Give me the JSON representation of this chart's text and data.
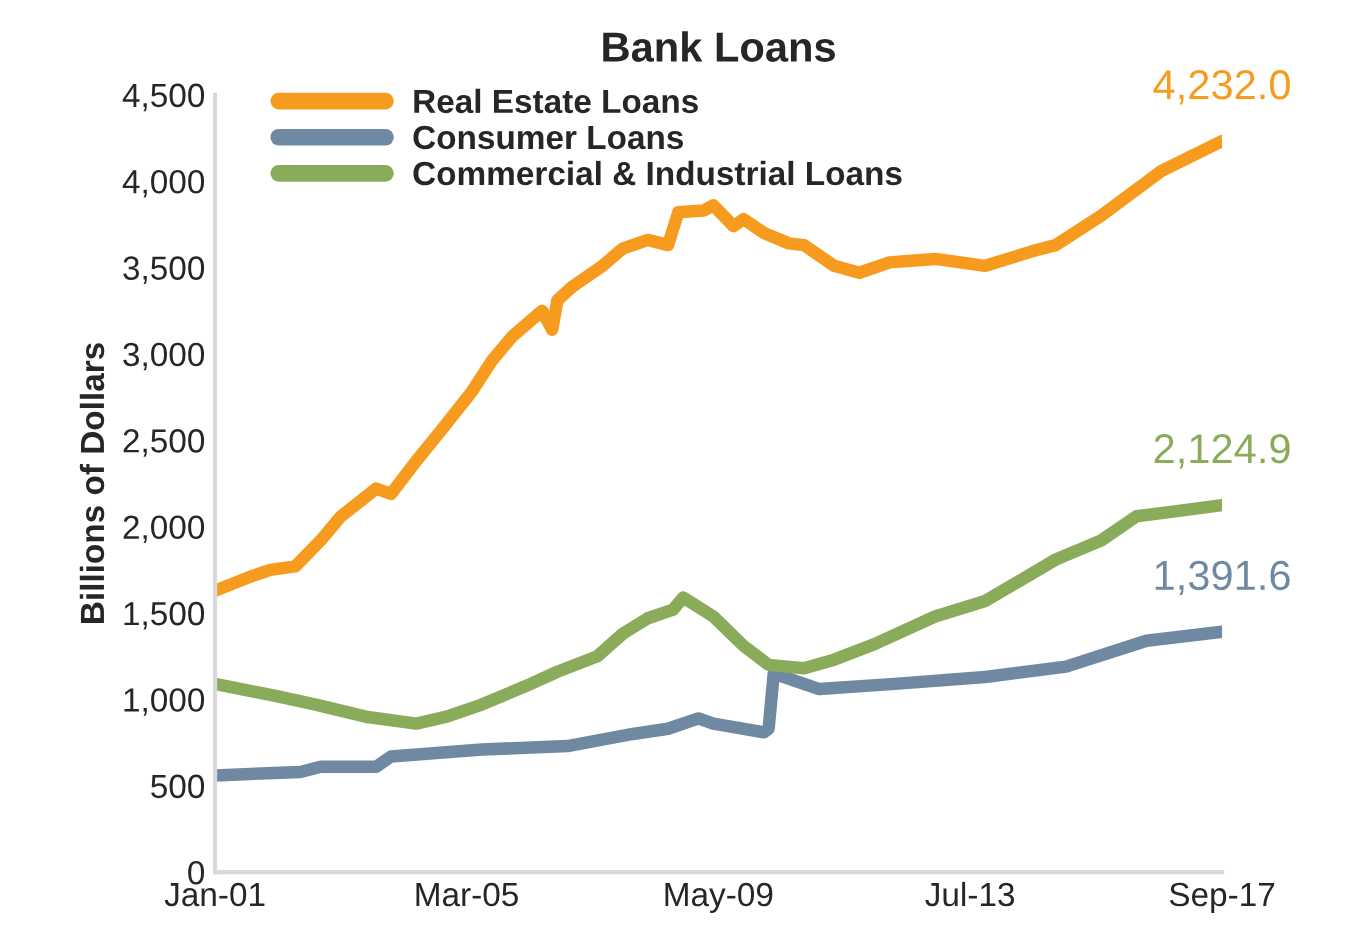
{
  "chart_data": {
    "type": "line",
    "title": "Bank Loans",
    "ylabel": "Billions of Dollars",
    "xlim": [
      "2001-01",
      "2017-09"
    ],
    "xticks": [
      {
        "value": "2001-01",
        "label": "Jan-01"
      },
      {
        "value": "2005-03",
        "label": "Mar-05"
      },
      {
        "value": "2009-05",
        "label": "May-09"
      },
      {
        "value": "2013-07",
        "label": "Jul-13"
      },
      {
        "value": "2017-09",
        "label": "Sep-17"
      }
    ],
    "ylim": [
      0,
      4500
    ],
    "yticks": [
      {
        "value": 0,
        "label": "0"
      },
      {
        "value": 500,
        "label": "500"
      },
      {
        "value": 1000,
        "label": "1,000"
      },
      {
        "value": 1500,
        "label": "1,500"
      },
      {
        "value": 2000,
        "label": "2,000"
      },
      {
        "value": 2500,
        "label": "2,500"
      },
      {
        "value": 3000,
        "label": "3,000"
      },
      {
        "value": 3500,
        "label": "3,500"
      },
      {
        "value": 4000,
        "label": "4,000"
      },
      {
        "value": 4500,
        "label": "4,500"
      }
    ],
    "grid": false,
    "legend": "top left",
    "marker": "none",
    "line_style": "solid",
    "series": [
      {
        "name": "Real Estate Loans",
        "color": "#f79b1e",
        "x": [
          "2001-01",
          "2001-08",
          "2001-12",
          "2002-05",
          "2002-10",
          "2003-02",
          "2003-06",
          "2003-09",
          "2003-12",
          "2004-05",
          "2004-10",
          "2005-04",
          "2005-08",
          "2005-12",
          "2006-06",
          "2006-08",
          "2006-09",
          "2006-12",
          "2007-06",
          "2007-10",
          "2008-03",
          "2008-07",
          "2008-09",
          "2009-02",
          "2009-04",
          "2009-08",
          "2009-10",
          "2010-02",
          "2010-07",
          "2010-10",
          "2011-04",
          "2011-09",
          "2012-03",
          "2012-12",
          "2013-10",
          "2014-08",
          "2014-12",
          "2015-09",
          "2016-09",
          "2017-09"
        ],
        "values": [
          1630,
          1710,
          1750,
          1770,
          1920,
          2060,
          2150,
          2220,
          2190,
          2380,
          2560,
          2780,
          2960,
          3100,
          3250,
          3140,
          3310,
          3390,
          3510,
          3610,
          3660,
          3630,
          3820,
          3830,
          3860,
          3740,
          3780,
          3700,
          3640,
          3630,
          3510,
          3470,
          3530,
          3550,
          3510,
          3600,
          3630,
          3800,
          4060,
          4232.0
        ]
      },
      {
        "name": "Consumer Loans",
        "color": "#7089a3",
        "x": [
          "2001-01",
          "2002-06",
          "2002-10",
          "2003-09",
          "2003-12",
          "2005-06",
          "2006-11",
          "2007-12",
          "2008-07",
          "2009-01",
          "2009-04",
          "2010-02",
          "2010-03",
          "2010-04",
          "2011-01",
          "2012-04",
          "2013-10",
          "2015-02",
          "2016-06",
          "2017-09"
        ],
        "values": [
          560,
          580,
          610,
          610,
          670,
          710,
          730,
          800,
          830,
          890,
          860,
          810,
          830,
          1150,
          1060,
          1090,
          1130,
          1190,
          1340,
          1391.6
        ]
      },
      {
        "name": "Commercial & Industrial Loans",
        "color": "#8aac5a",
        "x": [
          "2001-01",
          "2002-01",
          "2002-09",
          "2003-07",
          "2004-05",
          "2004-11",
          "2005-06",
          "2006-03",
          "2006-09",
          "2007-05",
          "2007-10",
          "2008-03",
          "2008-08",
          "2008-10",
          "2009-04",
          "2009-10",
          "2010-03",
          "2010-10",
          "2011-04",
          "2011-12",
          "2012-12",
          "2013-10",
          "2014-12",
          "2015-09",
          "2016-04",
          "2016-12",
          "2017-09"
        ],
        "values": [
          1090,
          1020,
          970,
          900,
          860,
          900,
          970,
          1080,
          1160,
          1250,
          1380,
          1470,
          1520,
          1590,
          1480,
          1310,
          1200,
          1180,
          1230,
          1320,
          1480,
          1570,
          1810,
          1920,
          2060,
          2090,
          2124.9
        ]
      }
    ],
    "annotations": [
      {
        "text": "4,232.0",
        "x": "2017-09",
        "y": 4232.0
      },
      {
        "text": "2,124.9",
        "x": "2017-09",
        "y": 2124.9
      },
      {
        "text": "1,391.6",
        "x": "2017-09",
        "y": 1391.6
      }
    ]
  }
}
